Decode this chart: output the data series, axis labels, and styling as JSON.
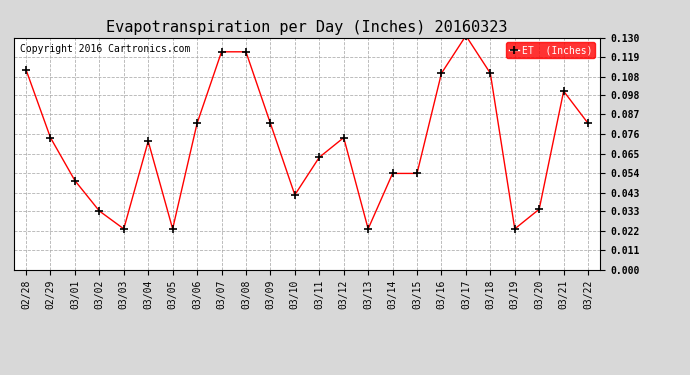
{
  "title": "Evapotranspiration per Day (Inches) 20160323",
  "copyright": "Copyright 2016 Cartronics.com",
  "legend_label": "ET  (Inches)",
  "dates": [
    "02/28",
    "02/29",
    "03/01",
    "03/02",
    "03/03",
    "03/04",
    "03/05",
    "03/06",
    "03/07",
    "03/08",
    "03/09",
    "03/10",
    "03/11",
    "03/12",
    "03/13",
    "03/14",
    "03/15",
    "03/16",
    "03/17",
    "03/18",
    "03/19",
    "03/20",
    "03/21",
    "03/22"
  ],
  "values": [
    0.112,
    0.074,
    0.05,
    0.033,
    0.023,
    0.072,
    0.023,
    0.082,
    0.122,
    0.122,
    0.082,
    0.042,
    0.063,
    0.074,
    0.023,
    0.054,
    0.054,
    0.11,
    0.131,
    0.11,
    0.023,
    0.034,
    0.1,
    0.082
  ],
  "ylim": [
    0.0,
    0.13
  ],
  "yticks": [
    0.0,
    0.011,
    0.022,
    0.033,
    0.043,
    0.054,
    0.065,
    0.076,
    0.087,
    0.098,
    0.108,
    0.119,
    0.13
  ],
  "line_color": "red",
  "marker": "+",
  "marker_color": "black",
  "marker_size": 6,
  "background_color": "#d8d8d8",
  "plot_bg_color": "white",
  "grid_color": "#aaaaaa",
  "grid_style": "--",
  "title_fontsize": 11,
  "copyright_fontsize": 7,
  "tick_fontsize": 7,
  "legend_bg_color": "red",
  "legend_text_color": "white",
  "legend_fontsize": 7
}
